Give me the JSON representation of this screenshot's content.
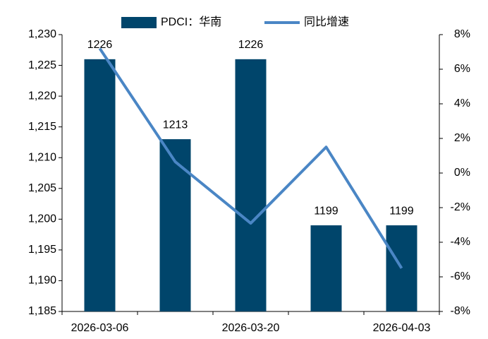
{
  "chart_data": {
    "type": "bar",
    "categories": [
      "2026-03-06",
      null,
      "2026-03-20",
      null,
      "2026-04-03"
    ],
    "series": [
      {
        "name": "PDCI：华南",
        "type": "bar",
        "color": "#00456b",
        "values": [
          1226,
          1213,
          1226,
          1199,
          1199
        ]
      },
      {
        "name": "同比增速",
        "type": "line",
        "axis": "y2",
        "color": "#4a86c5",
        "values": [
          7.2,
          0.65,
          -2.9,
          1.5,
          -5.5
        ]
      }
    ],
    "ylim": [
      1185,
      1230
    ],
    "yticks": [
      {
        "value": 1185,
        "label": "1,185"
      },
      {
        "value": 1190,
        "label": "1,190"
      },
      {
        "value": 1195,
        "label": "1,195"
      },
      {
        "value": 1200,
        "label": "1,200"
      },
      {
        "value": 1205,
        "label": "1,205"
      },
      {
        "value": 1210,
        "label": "1,210"
      },
      {
        "value": 1215,
        "label": "1,215"
      },
      {
        "value": 1220,
        "label": "1,220"
      },
      {
        "value": 1225,
        "label": "1,225"
      },
      {
        "value": 1230,
        "label": "1,230"
      }
    ],
    "y2lim": [
      -8,
      8
    ],
    "y2ticks": [
      {
        "value": -8,
        "label": "-8%"
      },
      {
        "value": -6,
        "label": "-6%"
      },
      {
        "value": -4,
        "label": "-4%"
      },
      {
        "value": -2,
        "label": "-2%"
      },
      {
        "value": 0,
        "label": "0%"
      },
      {
        "value": 2,
        "label": "2%"
      },
      {
        "value": 4,
        "label": "4%"
      },
      {
        "value": 6,
        "label": "6%"
      },
      {
        "value": 8,
        "label": "8%"
      }
    ],
    "legend": "top",
    "grid": false
  }
}
